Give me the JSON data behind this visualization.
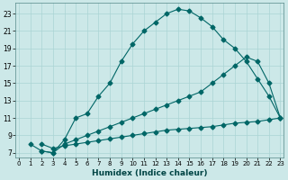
{
  "xlabel": "Humidex (Indice chaleur)",
  "bg_color": "#cce8e8",
  "line_color": "#006666",
  "line1_x": [
    1,
    2,
    3,
    4,
    5,
    6,
    7,
    8,
    9,
    10,
    11,
    12,
    13,
    14,
    15,
    16,
    17,
    18,
    19,
    20,
    21,
    22,
    23
  ],
  "line1_y": [
    8.0,
    7.2,
    7.0,
    8.5,
    11.0,
    11.5,
    13.5,
    15.0,
    17.5,
    19.5,
    21.0,
    22.0,
    23.0,
    23.5,
    23.3,
    22.5,
    21.5,
    20.0,
    19.0,
    17.5,
    15.5,
    13.5,
    11.0
  ],
  "line2_x": [
    2,
    3,
    4,
    5,
    6,
    7,
    8,
    9,
    10,
    11,
    12,
    13,
    14,
    15,
    16,
    17,
    18,
    19,
    20,
    21,
    22,
    23
  ],
  "line2_y": [
    7.2,
    7.0,
    8.0,
    8.5,
    9.0,
    9.5,
    10.0,
    10.5,
    11.0,
    11.5,
    12.0,
    12.5,
    13.0,
    13.5,
    14.0,
    15.0,
    16.0,
    17.0,
    18.0,
    17.5,
    15.0,
    11.0
  ],
  "line3_x": [
    2,
    3,
    4,
    5,
    6,
    7,
    8,
    9,
    10,
    11,
    12,
    13,
    14,
    15,
    16,
    17,
    18,
    19,
    20,
    21,
    22,
    23
  ],
  "line3_y": [
    8.0,
    7.5,
    7.8,
    8.0,
    8.2,
    8.4,
    8.6,
    8.8,
    9.0,
    9.2,
    9.4,
    9.6,
    9.7,
    9.8,
    9.9,
    10.0,
    10.2,
    10.4,
    10.5,
    10.6,
    10.8,
    11.0
  ],
  "xlim": [
    -0.3,
    23.3
  ],
  "ylim": [
    6.5,
    24.2
  ],
  "yticks": [
    7,
    9,
    11,
    13,
    15,
    17,
    19,
    21,
    23
  ],
  "xticks": [
    0,
    1,
    2,
    3,
    4,
    5,
    6,
    7,
    8,
    9,
    10,
    11,
    12,
    13,
    14,
    15,
    16,
    17,
    18,
    19,
    20,
    21,
    22,
    23
  ],
  "xtick_labels": [
    "0",
    "1",
    "2",
    "3",
    "4",
    "5",
    "6",
    "7",
    "8",
    "9",
    "10",
    "11",
    "12",
    "13",
    "14",
    "15",
    "16",
    "17",
    "18",
    "19",
    "20",
    "21",
    "22",
    "23"
  ],
  "grid_color": "#aad4d4",
  "markersize": 2.5,
  "lw": 0.8
}
